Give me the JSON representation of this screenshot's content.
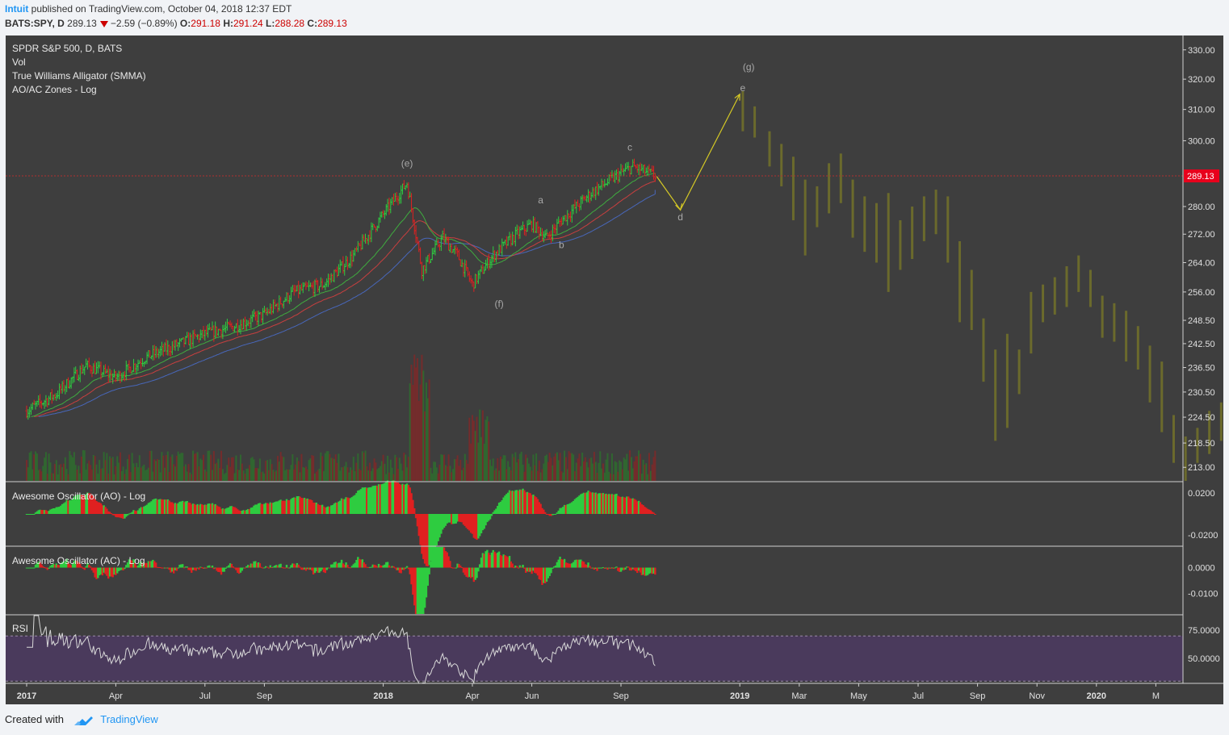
{
  "header": {
    "author": "Intuit",
    "published": " published on TradingView.com, October 04, 2018 12:37 EDT",
    "symbol": "BATS:SPY, D",
    "last": "289.13",
    "change": "−2.59 (−0.89%)",
    "o_label": "O:",
    "o": "291.18",
    "h_label": "H:",
    "h": "291.24",
    "l_label": "L:",
    "l": "288.28",
    "c_label": "C:",
    "c": "289.13"
  },
  "legend": {
    "line1": "SPDR S&P 500, D, BATS",
    "line2": "Vol",
    "line3": "True Williams Alligator (SMMA)",
    "line4": "AO/AC Zones - Log"
  },
  "panes": {
    "ao_title": "Awesome Oscillator (AO) - Log",
    "ac_title": "Awesome Oscillator (AC) - Log",
    "rsi_title": "RSI"
  },
  "footer": {
    "created": "Created with",
    "brand": "TradingView"
  },
  "colors": {
    "bg": "#3e3e3e",
    "up": "#2ecc40",
    "down": "#e02020",
    "ghost": "#6b6a2c",
    "price_line": "#b03030",
    "price_tag": "#e8001c",
    "wave": "#d4c825",
    "rsi_fill": "#4a3a5c",
    "rsi_line": "#d8d8d8"
  },
  "chart_data": {
    "type": "candlestick",
    "symbol": "SPY",
    "last_price": 289.13,
    "price_axis": {
      "ticks": [
        330.0,
        320.0,
        310.0,
        300.0,
        280.0,
        272.0,
        264.0,
        256.0,
        248.5,
        242.5,
        236.5,
        230.5,
        224.5,
        218.5,
        213.0
      ],
      "labels": [
        "330.00",
        "320.00",
        "310.00",
        "300.00",
        "280.00",
        "272.00",
        "264.00",
        "256.00",
        "248.50",
        "242.50",
        "236.50",
        "230.50",
        "224.50",
        "218.50",
        "213.00"
      ],
      "range": [
        210,
        335
      ],
      "scale": "log"
    },
    "time_axis": {
      "labels": [
        "2017",
        "Apr",
        "Jul",
        "Sep",
        "2018",
        "Apr",
        "Jun",
        "Sep",
        "2019",
        "Mar",
        "May",
        "Jul",
        "Sep",
        "Nov",
        "2020",
        "M"
      ],
      "bold": [
        "2017",
        "2018",
        "2019",
        "2020"
      ],
      "positions_month_index": [
        0,
        3,
        6,
        8,
        12,
        15,
        17,
        20,
        24,
        26,
        28,
        30,
        32,
        34,
        36,
        38
      ]
    },
    "price_path": [
      [
        0,
        226
      ],
      [
        1,
        230
      ],
      [
        2,
        237
      ],
      [
        3,
        234
      ],
      [
        4,
        239
      ],
      [
        5,
        242
      ],
      [
        6,
        245
      ],
      [
        7,
        247
      ],
      [
        8,
        250
      ],
      [
        9,
        256
      ],
      [
        10,
        258
      ],
      [
        11,
        266
      ],
      [
        12.8,
        287
      ],
      [
        13.3,
        262
      ],
      [
        14,
        271
      ],
      [
        14.5,
        266
      ],
      [
        15,
        258
      ],
      [
        15.7,
        266
      ],
      [
        16.5,
        272
      ],
      [
        17,
        275
      ],
      [
        17.5,
        271
      ],
      [
        18,
        276
      ],
      [
        19,
        284
      ],
      [
        20,
        290
      ],
      [
        20.4,
        292
      ],
      [
        21.2,
        289
      ]
    ],
    "projection": [
      [
        21.2,
        289
      ],
      [
        22,
        279
      ],
      [
        24,
        315
      ]
    ],
    "wave_labels": [
      {
        "text": "(e)",
        "month": 12.8,
        "price": 292
      },
      {
        "text": "(f)",
        "month": 15.9,
        "price": 252
      },
      {
        "text": "a",
        "month": 17.3,
        "price": 281
      },
      {
        "text": "b",
        "month": 18,
        "price": 268
      },
      {
        "text": "c",
        "month": 20.3,
        "price": 297
      },
      {
        "text": "d",
        "month": 22,
        "price": 276
      },
      {
        "text": "e",
        "month": 24.1,
        "price": 316
      },
      {
        "text": "(g)",
        "month": 24.3,
        "price": 323
      }
    ],
    "ghost_bars": [
      {
        "m": 24.1,
        "hi": 316,
        "lo": 303
      },
      {
        "m": 24.5,
        "hi": 311,
        "lo": 301
      },
      {
        "m": 25.0,
        "hi": 303,
        "lo": 292
      },
      {
        "m": 25.4,
        "hi": 299,
        "lo": 286
      },
      {
        "m": 25.8,
        "hi": 295,
        "lo": 276
      },
      {
        "m": 26.2,
        "hi": 288,
        "lo": 266
      },
      {
        "m": 26.6,
        "hi": 286,
        "lo": 274
      },
      {
        "m": 27.0,
        "hi": 293,
        "lo": 278
      },
      {
        "m": 27.4,
        "hi": 296,
        "lo": 281
      },
      {
        "m": 27.8,
        "hi": 288,
        "lo": 271
      },
      {
        "m": 28.2,
        "hi": 283,
        "lo": 267
      },
      {
        "m": 28.6,
        "hi": 281,
        "lo": 264
      },
      {
        "m": 29.0,
        "hi": 284,
        "lo": 256
      },
      {
        "m": 29.4,
        "hi": 276,
        "lo": 262
      },
      {
        "m": 29.8,
        "hi": 280,
        "lo": 265
      },
      {
        "m": 30.2,
        "hi": 283,
        "lo": 270
      },
      {
        "m": 30.6,
        "hi": 285,
        "lo": 272
      },
      {
        "m": 31.0,
        "hi": 283,
        "lo": 264
      },
      {
        "m": 31.4,
        "hi": 270,
        "lo": 248
      },
      {
        "m": 31.8,
        "hi": 262,
        "lo": 246
      },
      {
        "m": 32.2,
        "hi": 249,
        "lo": 233
      },
      {
        "m": 32.6,
        "hi": 241,
        "lo": 219
      },
      {
        "m": 33.0,
        "hi": 245,
        "lo": 222
      },
      {
        "m": 33.4,
        "hi": 241,
        "lo": 230
      },
      {
        "m": 33.8,
        "hi": 256,
        "lo": 240
      },
      {
        "m": 34.2,
        "hi": 258,
        "lo": 248
      },
      {
        "m": 34.6,
        "hi": 260,
        "lo": 250
      },
      {
        "m": 35.0,
        "hi": 263,
        "lo": 252
      },
      {
        "m": 35.4,
        "hi": 266,
        "lo": 256
      },
      {
        "m": 35.8,
        "hi": 262,
        "lo": 252
      },
      {
        "m": 36.2,
        "hi": 255,
        "lo": 244
      },
      {
        "m": 36.6,
        "hi": 253,
        "lo": 243
      },
      {
        "m": 37.0,
        "hi": 251,
        "lo": 238
      },
      {
        "m": 37.4,
        "hi": 247,
        "lo": 236
      },
      {
        "m": 37.8,
        "hi": 242,
        "lo": 228
      },
      {
        "m": 38.2,
        "hi": 238,
        "lo": 221
      },
      {
        "m": 38.6,
        "hi": 225,
        "lo": 214
      },
      {
        "m": 39.0,
        "hi": 220,
        "lo": 210
      },
      {
        "m": 39.4,
        "hi": 222,
        "lo": 214
      },
      {
        "m": 39.8,
        "hi": 226,
        "lo": 216
      },
      {
        "m": 40.2,
        "hi": 228,
        "lo": 219
      }
    ],
    "ao_axis": {
      "labels": [
        "0.0200",
        "-0.0200"
      ],
      "ticks": [
        0.02,
        -0.02
      ],
      "range": [
        -0.03,
        0.03
      ]
    },
    "ac_axis": {
      "labels": [
        "0.0000",
        "-0.0100"
      ],
      "ticks": [
        0.0,
        -0.01
      ],
      "range": [
        -0.018,
        0.008
      ]
    },
    "rsi_axis": {
      "labels": [
        "75.0000",
        "50.0000"
      ],
      "ticks": [
        75,
        50
      ],
      "range": [
        28,
        88
      ],
      "band": [
        70,
        30
      ]
    }
  }
}
